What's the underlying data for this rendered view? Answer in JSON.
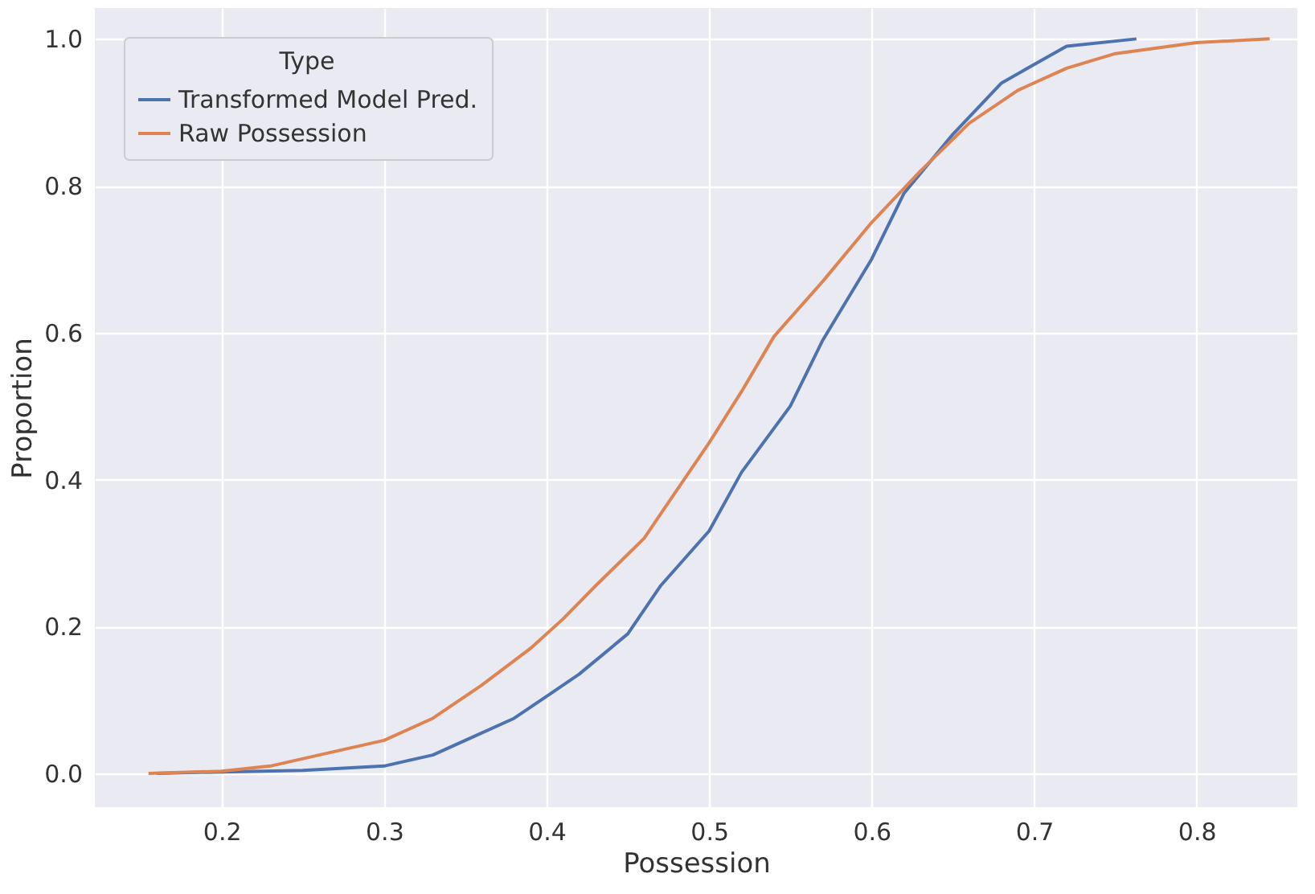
{
  "chart_data": {
    "type": "line",
    "xlabel": "Possession",
    "ylabel": "Proportion",
    "legend_title": "Type",
    "legend": "top left",
    "grid": true,
    "xlim": [
      0.122,
      0.862
    ],
    "ylim": [
      -0.046,
      1.042
    ],
    "xticks": [
      0.2,
      0.3,
      0.4,
      0.5,
      0.6,
      0.7,
      0.8
    ],
    "yticks": [
      {
        "value": 0,
        "label": "0.0"
      },
      0.2,
      0.4,
      0.6,
      0.8,
      {
        "value": 1,
        "label": "1.0"
      }
    ],
    "series": [
      {
        "name": "Transformed Model Pred.",
        "color": "#4c72b0",
        "x": [
          0.16,
          0.2,
          0.25,
          0.3,
          0.33,
          0.35,
          0.38,
          0.4,
          0.42,
          0.45,
          0.47,
          0.5,
          0.52,
          0.55,
          0.57,
          0.6,
          0.62,
          0.65,
          0.68,
          0.7,
          0.72,
          0.763
        ],
        "values": [
          0,
          0.002,
          0.004,
          0.01,
          0.025,
          0.045,
          0.075,
          0.105,
          0.135,
          0.19,
          0.255,
          0.33,
          0.41,
          0.5,
          0.59,
          0.7,
          0.79,
          0.87,
          0.94,
          0.965,
          0.99,
          1.0
        ]
      },
      {
        "name": "Raw Possession",
        "color": "#dd8452",
        "x": [
          0.155,
          0.2,
          0.23,
          0.26,
          0.3,
          0.33,
          0.36,
          0.39,
          0.41,
          0.43,
          0.46,
          0.48,
          0.5,
          0.52,
          0.54,
          0.57,
          0.6,
          0.63,
          0.66,
          0.69,
          0.72,
          0.75,
          0.8,
          0.845
        ],
        "values": [
          0,
          0.003,
          0.01,
          0.025,
          0.045,
          0.075,
          0.12,
          0.17,
          0.21,
          0.255,
          0.32,
          0.385,
          0.45,
          0.52,
          0.595,
          0.67,
          0.75,
          0.82,
          0.885,
          0.93,
          0.96,
          0.98,
          0.995,
          1.0
        ]
      }
    ]
  }
}
